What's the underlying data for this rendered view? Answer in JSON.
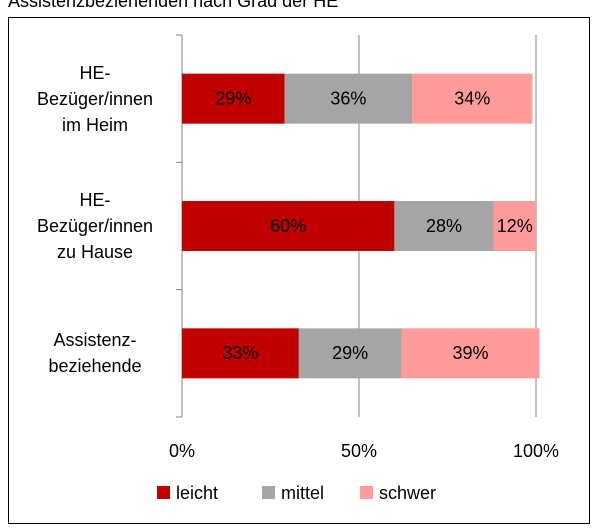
{
  "chart_data": {
    "type": "stacked_bar_horizontal",
    "title": "Assistenzbeziehenden nach Grad der HE",
    "categories": [
      "HE-\nBezüger/innen\nim Heim",
      "HE-\nBezüger/innen\nzu Hause",
      "Assistenz-\nbeziehende"
    ],
    "series": [
      {
        "name": "leicht",
        "color": "#c00000",
        "values": [
          29,
          60,
          33
        ],
        "value_labels": [
          "29%",
          "60%",
          "33%"
        ]
      },
      {
        "name": "mittel",
        "color": "#a5a5a5",
        "values": [
          36,
          28,
          29
        ],
        "value_labels": [
          "36%",
          "28%",
          "29%"
        ]
      },
      {
        "name": "schwer",
        "color": "#ff9b9b",
        "values": [
          34,
          12,
          39
        ],
        "value_labels": [
          "34%",
          "12%",
          "39%"
        ]
      }
    ],
    "xlim": [
      0,
      100
    ],
    "xticks": [
      {
        "value": 0,
        "label": "0%"
      },
      {
        "value": 50,
        "label": "50%"
      },
      {
        "value": 100,
        "label": "100%"
      }
    ],
    "grid": true,
    "legend": "bottom"
  }
}
